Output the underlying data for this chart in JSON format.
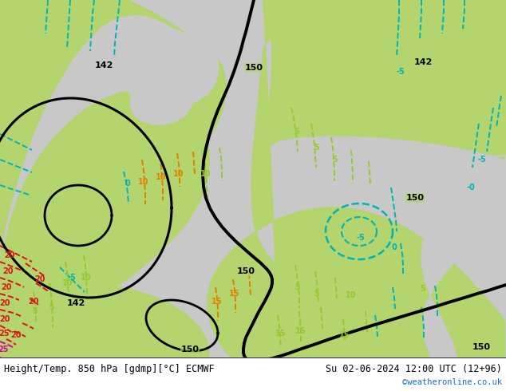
{
  "title_left": "Height/Temp. 850 hPa [gdmp][°C] ECMWF",
  "title_right": "Su 02-06-2024 12:00 UTC (12+96)",
  "credit": "©weatheronline.co.uk",
  "credit_color": "#1a6acc",
  "gray_sea": "#c8c8c8",
  "green_land": "#b4d46e",
  "light_green": "#c8dc82",
  "white": "#ffffff",
  "cyan": "#00b4b4",
  "ygreen": "#96c832",
  "orange": "#e08000",
  "red": "#dc1414",
  "magenta": "#dc00a0",
  "black": "#000000"
}
